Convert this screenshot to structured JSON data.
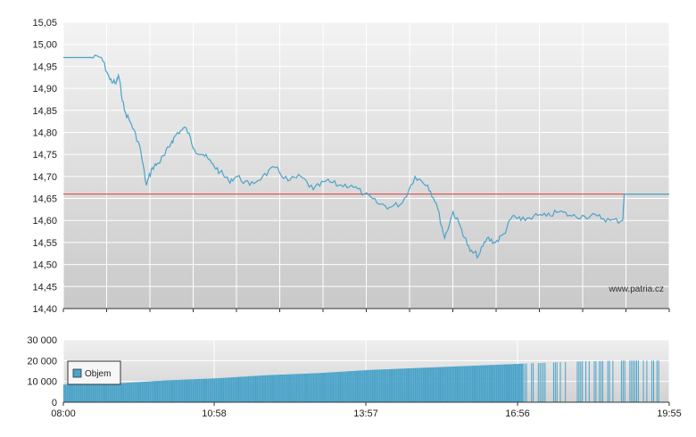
{
  "chart_data": [
    {
      "type": "line",
      "name": "price",
      "ylim": [
        14.4,
        15.05
      ],
      "yticks": [
        "15,05",
        "15,00",
        "14,95",
        "14,90",
        "14,85",
        "14,80",
        "14,75",
        "14,70",
        "14,65",
        "14,60",
        "14,55",
        "14,50",
        "14,45",
        "14,40"
      ],
      "yticks_num": [
        15.05,
        15.0,
        14.95,
        14.9,
        14.85,
        14.8,
        14.75,
        14.7,
        14.65,
        14.6,
        14.55,
        14.5,
        14.45,
        14.4
      ],
      "reference_line": 14.66,
      "x_start": "08:00",
      "x_end": "19:55",
      "x": [
        "08:00",
        "08:30",
        "08:45",
        "08:55",
        "09:02",
        "09:05",
        "09:12",
        "09:20",
        "09:30",
        "09:38",
        "09:45",
        "09:52",
        "10:00",
        "10:08",
        "10:15",
        "10:25",
        "10:35",
        "10:45",
        "10:55",
        "11:05",
        "11:15",
        "11:25",
        "11:40",
        "11:55",
        "12:10",
        "12:25",
        "12:40",
        "12:55",
        "13:10",
        "13:25",
        "13:40",
        "13:55",
        "14:10",
        "14:25",
        "14:40",
        "14:55",
        "15:10",
        "15:20",
        "15:30",
        "15:40",
        "15:50",
        "16:00",
        "16:10",
        "16:20",
        "16:30",
        "16:40",
        "16:50",
        "17:00",
        "17:15",
        "17:30",
        "17:45",
        "18:00",
        "18:15",
        "18:30",
        "18:45",
        "19:00",
        "19:02",
        "19:10",
        "19:55"
      ],
      "y": [
        14.97,
        14.97,
        14.97,
        14.92,
        14.91,
        14.93,
        14.85,
        14.82,
        14.77,
        14.68,
        14.72,
        14.73,
        14.75,
        14.78,
        14.8,
        14.81,
        14.76,
        14.75,
        14.73,
        14.71,
        14.69,
        14.7,
        14.68,
        14.7,
        14.72,
        14.69,
        14.7,
        14.67,
        14.69,
        14.68,
        14.68,
        14.66,
        14.64,
        14.63,
        14.64,
        14.7,
        14.68,
        14.64,
        14.56,
        14.62,
        14.58,
        14.53,
        14.52,
        14.56,
        14.55,
        14.57,
        14.61,
        14.6,
        14.61,
        14.61,
        14.62,
        14.61,
        14.61,
        14.61,
        14.6,
        14.6,
        14.66,
        14.66,
        14.66
      ],
      "watermark": "www.patria.cz"
    },
    {
      "type": "area",
      "name": "volume",
      "ylim": [
        0,
        30000
      ],
      "yticks": [
        "30 000",
        "20 000",
        "10 000",
        "0"
      ],
      "yticks_num": [
        30000,
        20000,
        10000,
        0
      ],
      "xticks": [
        "08:00",
        "10:58",
        "13:57",
        "16:56",
        "19:55"
      ],
      "series": [
        {
          "name": "Objem",
          "x": [
            "08:00",
            "09:00",
            "10:00",
            "11:00",
            "12:00",
            "13:00",
            "14:00",
            "15:00",
            "16:00",
            "17:00",
            "18:00",
            "19:00",
            "19:55"
          ],
          "values": [
            8500,
            9000,
            10500,
            11500,
            13000,
            14000,
            15500,
            16500,
            17500,
            18500,
            19500,
            20000,
            20000
          ]
        }
      ],
      "legend": "top-left"
    }
  ],
  "colors": {
    "line": "#4AA3C9",
    "reference": "#E23B3B",
    "volume": "#4AA3C9",
    "plot_top": "#F2F2F2",
    "plot_bottom": "#C8C8C8"
  }
}
